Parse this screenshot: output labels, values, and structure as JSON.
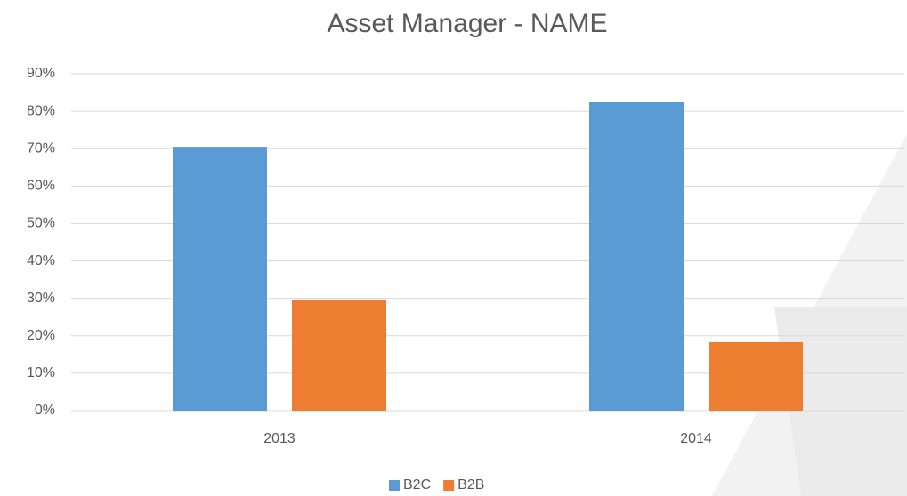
{
  "chart_data": {
    "type": "bar",
    "title": "Asset Manager - NAME",
    "categories": [
      "2013",
      "2014"
    ],
    "series": [
      {
        "name": "B2C",
        "color": "#5b9bd5",
        "values": [
          70.5,
          82.4
        ]
      },
      {
        "name": "B2B",
        "color": "#ed7d31",
        "values": [
          29.6,
          18.3
        ]
      }
    ],
    "ylim": [
      0,
      90
    ],
    "yticks": [
      {
        "value": 0,
        "label": "0%"
      },
      {
        "value": 10,
        "label": "10%"
      },
      {
        "value": 20,
        "label": "20%"
      },
      {
        "value": 30,
        "label": "30%"
      },
      {
        "value": 40,
        "label": "40%"
      },
      {
        "value": 50,
        "label": "50%"
      },
      {
        "value": 60,
        "label": "60%"
      },
      {
        "value": 70,
        "label": "70%"
      },
      {
        "value": 80,
        "label": "80%"
      },
      {
        "value": 90,
        "label": "90%"
      }
    ],
    "grid": true,
    "legend": "bottom"
  }
}
